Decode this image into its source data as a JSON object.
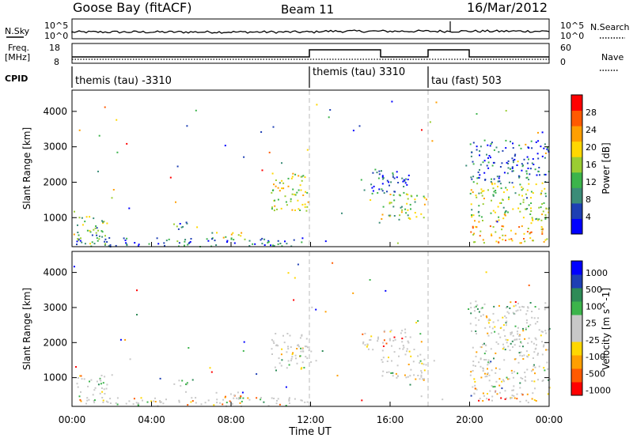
{
  "header": {
    "station": "Goose Bay (fitACF)",
    "beam": "Beam 11",
    "date": "16/Mar/2012"
  },
  "noise_panel": {
    "left_label": "N.Sky",
    "right_label": "N.Search",
    "left_ticks": [
      "10^5",
      "10^0"
    ],
    "right_ticks": [
      "10^5",
      "10^0"
    ]
  },
  "freq_panel": {
    "left_label_1": "Freq.",
    "left_label_2": "[MHz]",
    "right_label": "Nave",
    "left_ticks": [
      "18",
      "8"
    ],
    "right_ticks": [
      "60",
      "0"
    ]
  },
  "cpid_panel": {
    "label": "CPID",
    "segments": [
      {
        "name": "themis (tau) -3310",
        "start_hour": 0,
        "end_hour": 12
      },
      {
        "name": "themis (tau) 3310",
        "start_hour": 12,
        "end_hour": 18
      },
      {
        "name": "tau (fast) 503",
        "start_hour": 18,
        "end_hour": 24
      }
    ]
  },
  "colors": {
    "power_scale": [
      "#0000ff",
      "#1e3fb4",
      "#3b8c78",
      "#3cb44b",
      "#9acd32",
      "#ffd700",
      "#ff9f00",
      "#ff5a00",
      "#ff0000"
    ],
    "velocity_scale": [
      "#ff0000",
      "#ff5a00",
      "#ff9f00",
      "#ffd700",
      "#c8c8c8",
      "#c8c8c8",
      "#3cb44b",
      "#2e8b57",
      "#1e3fb4",
      "#0000ff"
    ]
  },
  "chart_data": [
    {
      "type": "heatmap",
      "name": "power",
      "title": "",
      "xlabel": "Time UT",
      "ylabel": "Slant Range [km]",
      "xlim": [
        0,
        24
      ],
      "ylim": [
        180,
        4600
      ],
      "x_ticks": [
        "00:00",
        "04:00",
        "08:00",
        "12:00",
        "16:00",
        "20:00",
        "00:00"
      ],
      "x_tick_hours": [
        0,
        4,
        8,
        12,
        16,
        20,
        24
      ],
      "y_ticks": [
        1000,
        2000,
        3000,
        4000
      ],
      "colorbar_label": "Power [dB]",
      "colorbar_ticks": [
        "4",
        "8",
        "12",
        "16",
        "20",
        "24",
        "28"
      ],
      "scatter_regions": [
        {
          "t0": 0.2,
          "t1": 1.8,
          "r0": 250,
          "r1": 1100,
          "level": 0.35
        },
        {
          "t0": 0.0,
          "t1": 12.0,
          "r0": 200,
          "r1": 450,
          "level": 0.2
        },
        {
          "t0": 5.0,
          "t1": 5.8,
          "r0": 600,
          "r1": 950,
          "level": 0.3
        },
        {
          "t0": 7.0,
          "t1": 8.5,
          "r0": 350,
          "r1": 600,
          "level": 0.5
        },
        {
          "t0": 10.0,
          "t1": 12.0,
          "r0": 1200,
          "r1": 2300,
          "level": 0.55
        },
        {
          "t0": 15.5,
          "t1": 17.8,
          "r0": 950,
          "r1": 1700,
          "level": 0.5
        },
        {
          "t0": 14.5,
          "t1": 17.0,
          "r0": 1700,
          "r1": 2400,
          "level": 0.15
        },
        {
          "t0": 20.0,
          "t1": 24.0,
          "r0": 300,
          "r1": 800,
          "level": 0.7
        },
        {
          "t0": 20.0,
          "t1": 24.0,
          "r0": 900,
          "r1": 2000,
          "level": 0.5
        },
        {
          "t0": 20.0,
          "t1": 24.0,
          "r0": 2000,
          "r1": 3200,
          "level": 0.15
        }
      ]
    },
    {
      "type": "heatmap",
      "name": "velocity",
      "title": "",
      "xlabel": "Time UT",
      "ylabel": "Slant Range [km]",
      "xlim": [
        0,
        24
      ],
      "ylim": [
        180,
        4600
      ],
      "x_ticks": [
        "00:00",
        "04:00",
        "08:00",
        "12:00",
        "16:00",
        "20:00",
        "00:00"
      ],
      "x_tick_hours": [
        0,
        4,
        8,
        12,
        16,
        20,
        24
      ],
      "y_ticks": [
        1000,
        2000,
        3000,
        4000
      ],
      "colorbar_label": "Velocity [m s^-1]",
      "colorbar_ticks": [
        "1000",
        "500",
        "100",
        "25",
        "-25",
        "-100",
        "-500",
        "-1000"
      ],
      "scatter_regions": [
        {
          "t0": 0.2,
          "t1": 1.8,
          "r0": 250,
          "r1": 1100,
          "level": 0.45
        },
        {
          "t0": 0.0,
          "t1": 12.0,
          "r0": 200,
          "r1": 450,
          "level": 0.45
        },
        {
          "t0": 5.0,
          "t1": 5.8,
          "r0": 600,
          "r1": 950,
          "level": 0.4
        },
        {
          "t0": 7.0,
          "t1": 8.5,
          "r0": 350,
          "r1": 600,
          "level": 0.3
        },
        {
          "t0": 10.0,
          "t1": 12.0,
          "r0": 1200,
          "r1": 2300,
          "level": 0.5
        },
        {
          "t0": 15.5,
          "t1": 17.8,
          "r0": 950,
          "r1": 1700,
          "level": 0.5
        },
        {
          "t0": 14.5,
          "t1": 17.0,
          "r0": 1700,
          "r1": 2400,
          "level": 0.3
        },
        {
          "t0": 20.0,
          "t1": 24.0,
          "r0": 300,
          "r1": 800,
          "level": 0.3
        },
        {
          "t0": 20.0,
          "t1": 24.0,
          "r0": 900,
          "r1": 2000,
          "level": 0.5
        },
        {
          "t0": 20.0,
          "t1": 24.0,
          "r0": 2000,
          "r1": 3200,
          "level": 0.5
        }
      ]
    }
  ]
}
